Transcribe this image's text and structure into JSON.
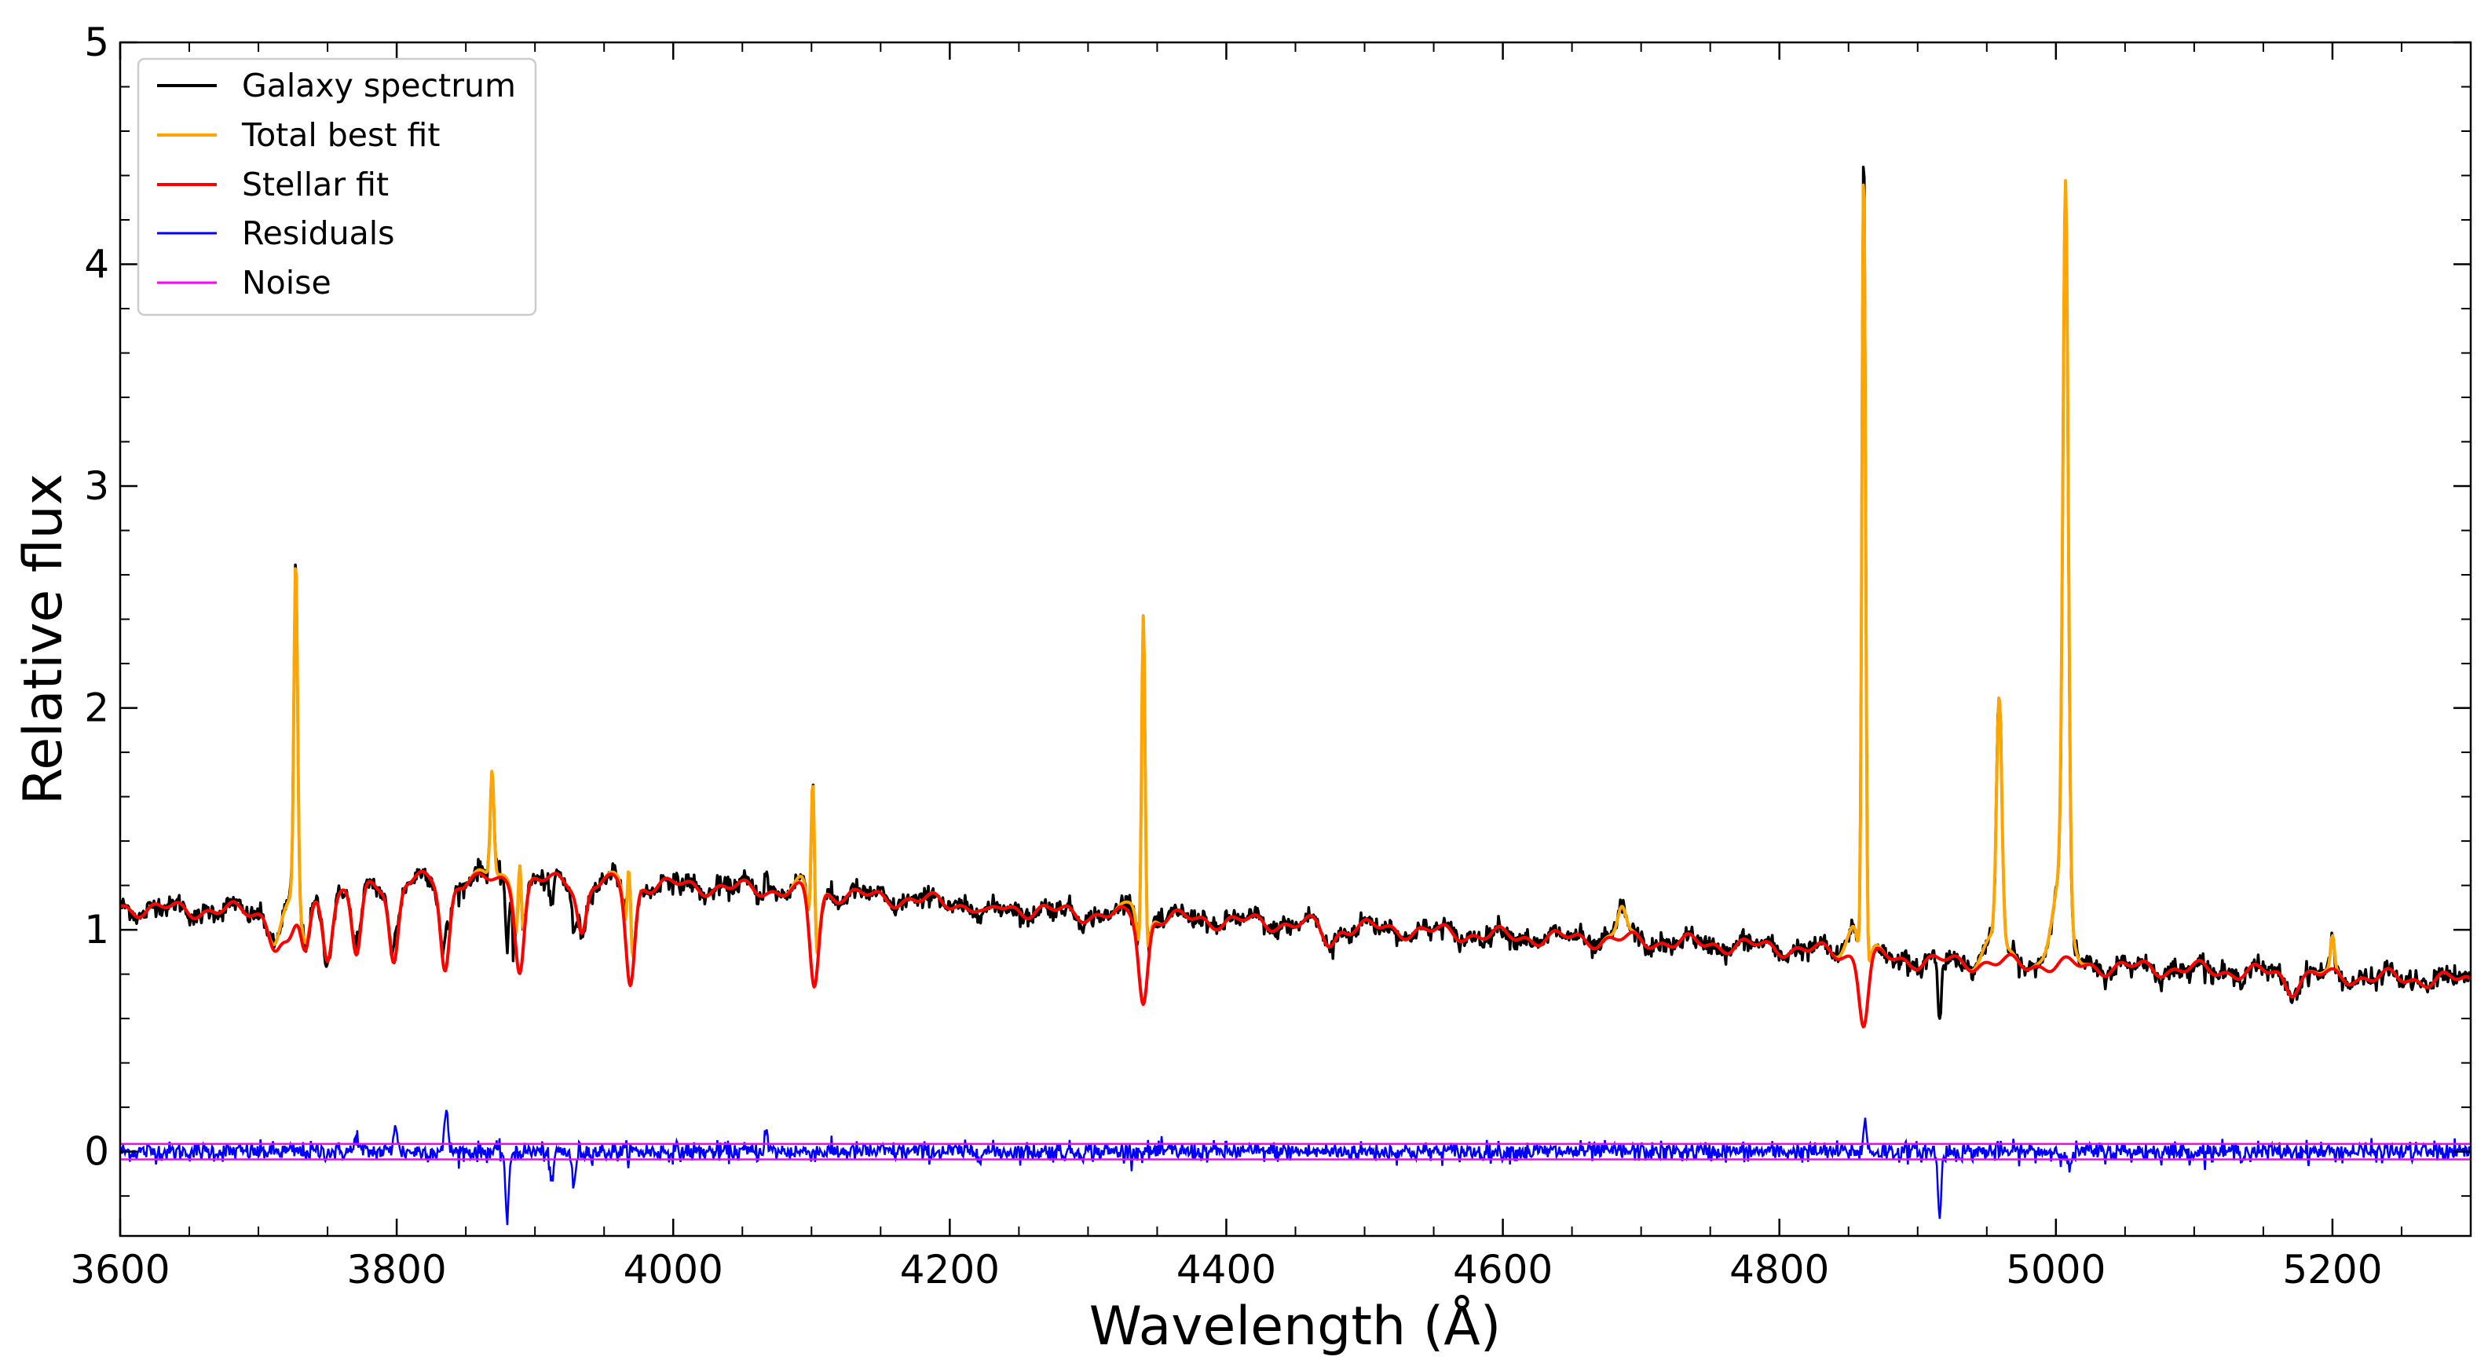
{
  "chart_data": {
    "type": "line",
    "xlabel": "Wavelength (Å)",
    "ylabel": "Relative flux",
    "xlim": [
      3600,
      5300
    ],
    "ylim": [
      -0.38,
      5.0
    ],
    "x_ticks": [
      "3600",
      "3800",
      "4000",
      "4200",
      "4400",
      "4600",
      "4800",
      "5000",
      "5200"
    ],
    "y_ticks": [
      "0",
      "1",
      "2",
      "3",
      "4",
      "5"
    ],
    "tick_direction": "in",
    "grid": false,
    "legend_position": "top-left",
    "colors": {
      "galaxy": "#000000",
      "total": "#ffa500",
      "stellar": "#ff0000",
      "residuals": "#0000ff",
      "noise": "#ff00ff"
    },
    "continuum": {
      "x": [
        3600,
        3700,
        3800,
        3900,
        4000,
        4100,
        4200,
        4300,
        4400,
        4500,
        4600,
        4700,
        4800,
        4900,
        5000,
        5100,
        5200,
        5300
      ],
      "y": [
        1.1,
        1.08,
        1.22,
        1.22,
        1.2,
        1.17,
        1.12,
        1.07,
        1.04,
        1.01,
        0.97,
        0.95,
        0.92,
        0.86,
        0.84,
        0.82,
        0.79,
        0.77
      ]
    },
    "stellar_absorption_lines": [
      {
        "x": 3712,
        "depth": 0.15
      },
      {
        "x": 3722,
        "depth": 0.18
      },
      {
        "x": 3734,
        "depth": 0.22
      },
      {
        "x": 3750,
        "depth": 0.25
      },
      {
        "x": 3771,
        "depth": 0.3
      },
      {
        "x": 3798,
        "depth": 0.36
      },
      {
        "x": 3835,
        "depth": 0.4
      },
      {
        "x": 3889,
        "depth": 0.38
      },
      {
        "x": 3934,
        "depth": 0.22
      },
      {
        "x": 3969,
        "depth": 0.45
      },
      {
        "x": 4102,
        "depth": 0.42
      },
      {
        "x": 4227,
        "depth": 0.05
      },
      {
        "x": 4340,
        "depth": 0.38
      },
      {
        "x": 4475,
        "depth": 0.08
      },
      {
        "x": 4861,
        "depth": 0.3
      },
      {
        "x": 5170,
        "depth": 0.06
      }
    ],
    "emission_lines": [
      {
        "x": 3727,
        "peak": 2.52
      },
      {
        "x": 3869,
        "peak": 1.7
      },
      {
        "x": 3889,
        "peak": 1.27
      },
      {
        "x": 3968,
        "peak": 1.25
      },
      {
        "x": 4101,
        "peak": 1.63
      },
      {
        "x": 4340,
        "peak": 2.35
      },
      {
        "x": 4686,
        "peak": 1.1
      },
      {
        "x": 4861,
        "peak": 4.3
      },
      {
        "x": 4959,
        "peak": 1.95
      },
      {
        "x": 5007,
        "peak": 4.07
      },
      {
        "x": 5200,
        "peak": 0.97
      }
    ],
    "residual_features": [
      {
        "x": 3836,
        "y": 0.2
      },
      {
        "x": 3799,
        "y": 0.14
      },
      {
        "x": 3771,
        "y": 0.08
      },
      {
        "x": 3880,
        "y": -0.33
      },
      {
        "x": 3912,
        "y": -0.17
      },
      {
        "x": 3928,
        "y": -0.17
      },
      {
        "x": 4067,
        "y": 0.09
      },
      {
        "x": 4862,
        "y": 0.13
      },
      {
        "x": 4916,
        "y": -0.3
      },
      {
        "x": 5010,
        "y": -0.1
      }
    ],
    "galaxy_dips": [
      {
        "x": 3884,
        "y": 0.86
      },
      {
        "x": 4477,
        "y": 0.87
      },
      {
        "x": 4916,
        "y": 0.6
      }
    ],
    "noise_level": 0.035,
    "series": [
      {
        "name": "Galaxy spectrum"
      },
      {
        "name": "Total best fit"
      },
      {
        "name": "Stellar fit"
      },
      {
        "name": "Residuals"
      },
      {
        "name": "Noise"
      }
    ]
  }
}
